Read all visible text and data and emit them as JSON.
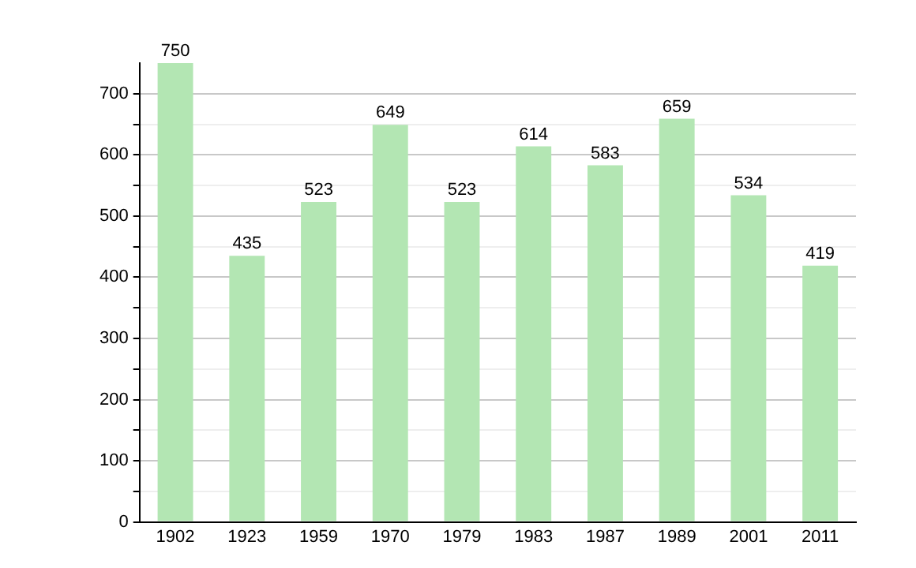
{
  "chart_data": {
    "type": "bar",
    "categories": [
      "1902",
      "1923",
      "1959",
      "1970",
      "1979",
      "1983",
      "1987",
      "1989",
      "2001",
      "2011"
    ],
    "values": [
      750,
      435,
      523,
      649,
      523,
      614,
      583,
      659,
      534,
      419
    ],
    "color": "#b3e6b3",
    "ylim": [
      0,
      750
    ],
    "yticks": [
      0,
      {
        "value": 50,
        "label": null
      },
      100,
      {
        "value": 150,
        "label": null
      },
      200,
      {
        "value": 250,
        "label": null
      },
      300,
      {
        "value": 350,
        "label": null
      },
      400,
      {
        "value": 450,
        "label": null
      },
      500,
      {
        "value": 550,
        "label": null
      },
      600,
      {
        "value": 650,
        "label": null
      },
      700
    ],
    "grid": "y",
    "data_labels": true,
    "legend": false
  }
}
